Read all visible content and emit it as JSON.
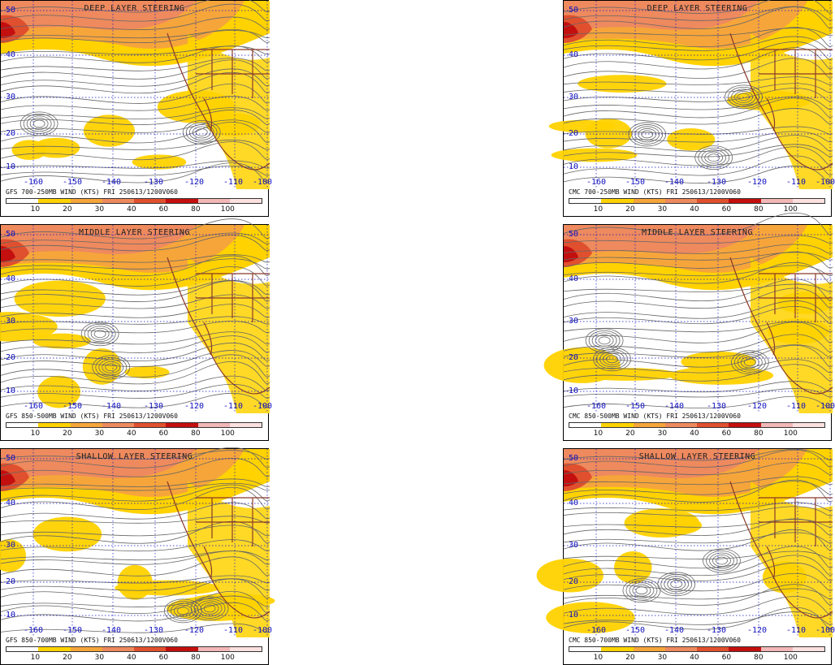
{
  "colors": {
    "bands": [
      "#ffffff",
      "#ffd200",
      "#f6a53b",
      "#ee8a5e",
      "#e0502e",
      "#c40f0f",
      "#f2b7b7",
      "#fde0e0"
    ],
    "grid": "#1010c0",
    "streamline": "#666666",
    "border": "#8b3a2a"
  },
  "legend_labels": [
    "10",
    "20",
    "30",
    "40",
    "60",
    "80",
    "100"
  ],
  "lat_labels": [
    "50",
    "40",
    "30",
    "20",
    "10"
  ],
  "lon_labels": [
    "-160",
    "-150",
    "-140",
    "-130",
    "-120",
    "-110",
    "-100"
  ],
  "panels": [
    {
      "id": "gfs-deep",
      "title": "DEEP LAYER STEERING",
      "caption": "GFS 700-250MB WIND (KTS) FRI 250613/1200V060"
    },
    {
      "id": "cmc-deep",
      "title": "DEEP LAYER STEERING",
      "caption": "CMC 700-250MB WIND (KTS) FRI 250613/1200V060"
    },
    {
      "id": "gfs-middle",
      "title": "MIDDLE LAYER STEERING",
      "caption": "GFS 850-500MB WIND (KTS) FRI 250613/1200V060"
    },
    {
      "id": "cmc-middle",
      "title": "MIDDLE LAYER STEERING",
      "caption": "CMC 850-500MB WIND (KTS) FRI 250613/1200V060"
    },
    {
      "id": "gfs-shallow",
      "title": "SHALLOW LAYER STEERING",
      "caption": "GFS 850-700MB WIND (KTS) FRI 250613/1200V060"
    },
    {
      "id": "cmc-shallow",
      "title": "SHALLOW LAYER STEERING",
      "caption": "CMC 850-700MB WIND (KTS) FRI 250613/1200V060"
    }
  ]
}
